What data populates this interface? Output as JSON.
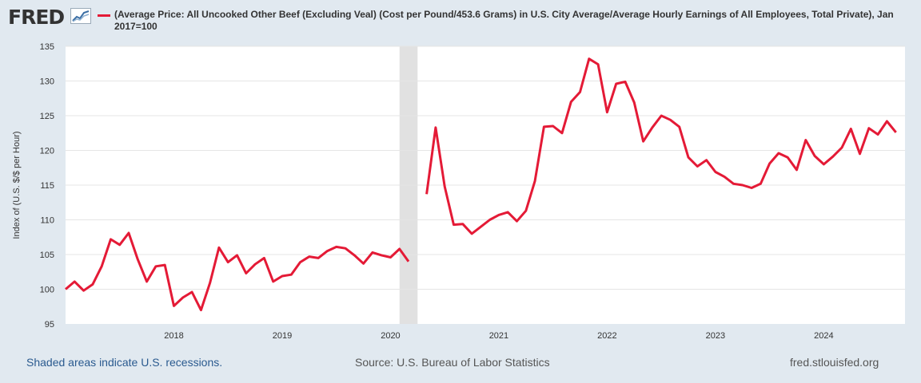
{
  "header": {
    "logo_text": "FRED",
    "logo_icon": "trend-line-icon",
    "legend_label": "(Average Price: All Uncooked Other Beef (Excluding Veal) (Cost per Pound/453.6 Grams) in U.S. City Average/Average Hourly Earnings of All Employees, Total Private), Jan 2017=100"
  },
  "colors": {
    "series": "#e41a36",
    "recession": "#e1e1e1",
    "grid": "#e5e5e5",
    "page_bg": "#e1e9f0",
    "plot_bg": "#ffffff"
  },
  "footer": {
    "recession_note": "Shaded areas indicate U.S. recessions.",
    "source": "Source: U.S. Bureau of Labor Statistics",
    "site": "fred.stlouisfed.org"
  },
  "chart_data": {
    "type": "line",
    "title": "(Average Price: All Uncooked Other Beef (Excluding Veal) (Cost per Pound/453.6 Grams) in U.S. City Average/Average Hourly Earnings of All Employees, Total Private), Jan 2017=100",
    "xlabel": "",
    "ylabel": "Index of (U.S. $/$ per Hour)",
    "ylim": [
      95,
      135
    ],
    "xlim": [
      2017.0,
      2024.75
    ],
    "yticks": [
      95,
      100,
      105,
      110,
      115,
      120,
      125,
      130,
      135
    ],
    "xticks": [
      2018,
      2019,
      2020,
      2021,
      2022,
      2023,
      2024
    ],
    "xtick_labels": [
      "2018",
      "2019",
      "2020",
      "2021",
      "2022",
      "2023",
      "2024"
    ],
    "grid": true,
    "recessions": [
      [
        2020.0833,
        2020.25
      ]
    ],
    "series": [
      {
        "name": "(Average Price: All Uncooked Other Beef (Excluding Veal) (Cost per Pound/453.6 Grams) in U.S. City Average/Average Hourly Earnings of All Employees, Total Private), Jan 2017=100",
        "segments": [
          {
            "start": 2017.0,
            "values": [
              100.0,
              101.1,
              99.8,
              100.7,
              103.3,
              107.2,
              106.4,
              108.1,
              104.3,
              101.1,
              103.3,
              103.5,
              97.6,
              98.8,
              99.6,
              97.0,
              100.9,
              106.0,
              103.9,
              104.9,
              102.3,
              103.6,
              104.5,
              101.1,
              101.9,
              102.1,
              103.9,
              104.7,
              104.5,
              105.5,
              106.1,
              105.9,
              104.9,
              103.7,
              105.3,
              104.9,
              104.6,
              105.8,
              104.0
            ]
          },
          {
            "start": 2020.3333,
            "values": [
              113.7,
              123.3,
              114.8,
              109.3,
              109.4,
              108.0,
              109.0,
              110.0,
              110.7,
              111.1,
              109.8,
              111.3,
              115.6,
              123.4,
              123.5,
              122.5,
              127.0,
              128.4,
              133.2,
              132.4,
              125.5,
              129.6,
              129.9,
              126.9,
              121.3,
              123.3,
              125.0,
              124.4,
              123.4,
              119.0,
              117.7,
              118.6,
              116.9,
              116.2,
              115.2,
              115.0,
              114.6,
              115.2,
              118.1,
              119.6,
              119.0,
              117.2,
              121.5,
              119.2,
              118.0,
              119.1,
              120.4,
              123.1,
              119.5,
              123.2,
              122.3,
              124.2,
              122.6
            ]
          }
        ]
      }
    ]
  }
}
